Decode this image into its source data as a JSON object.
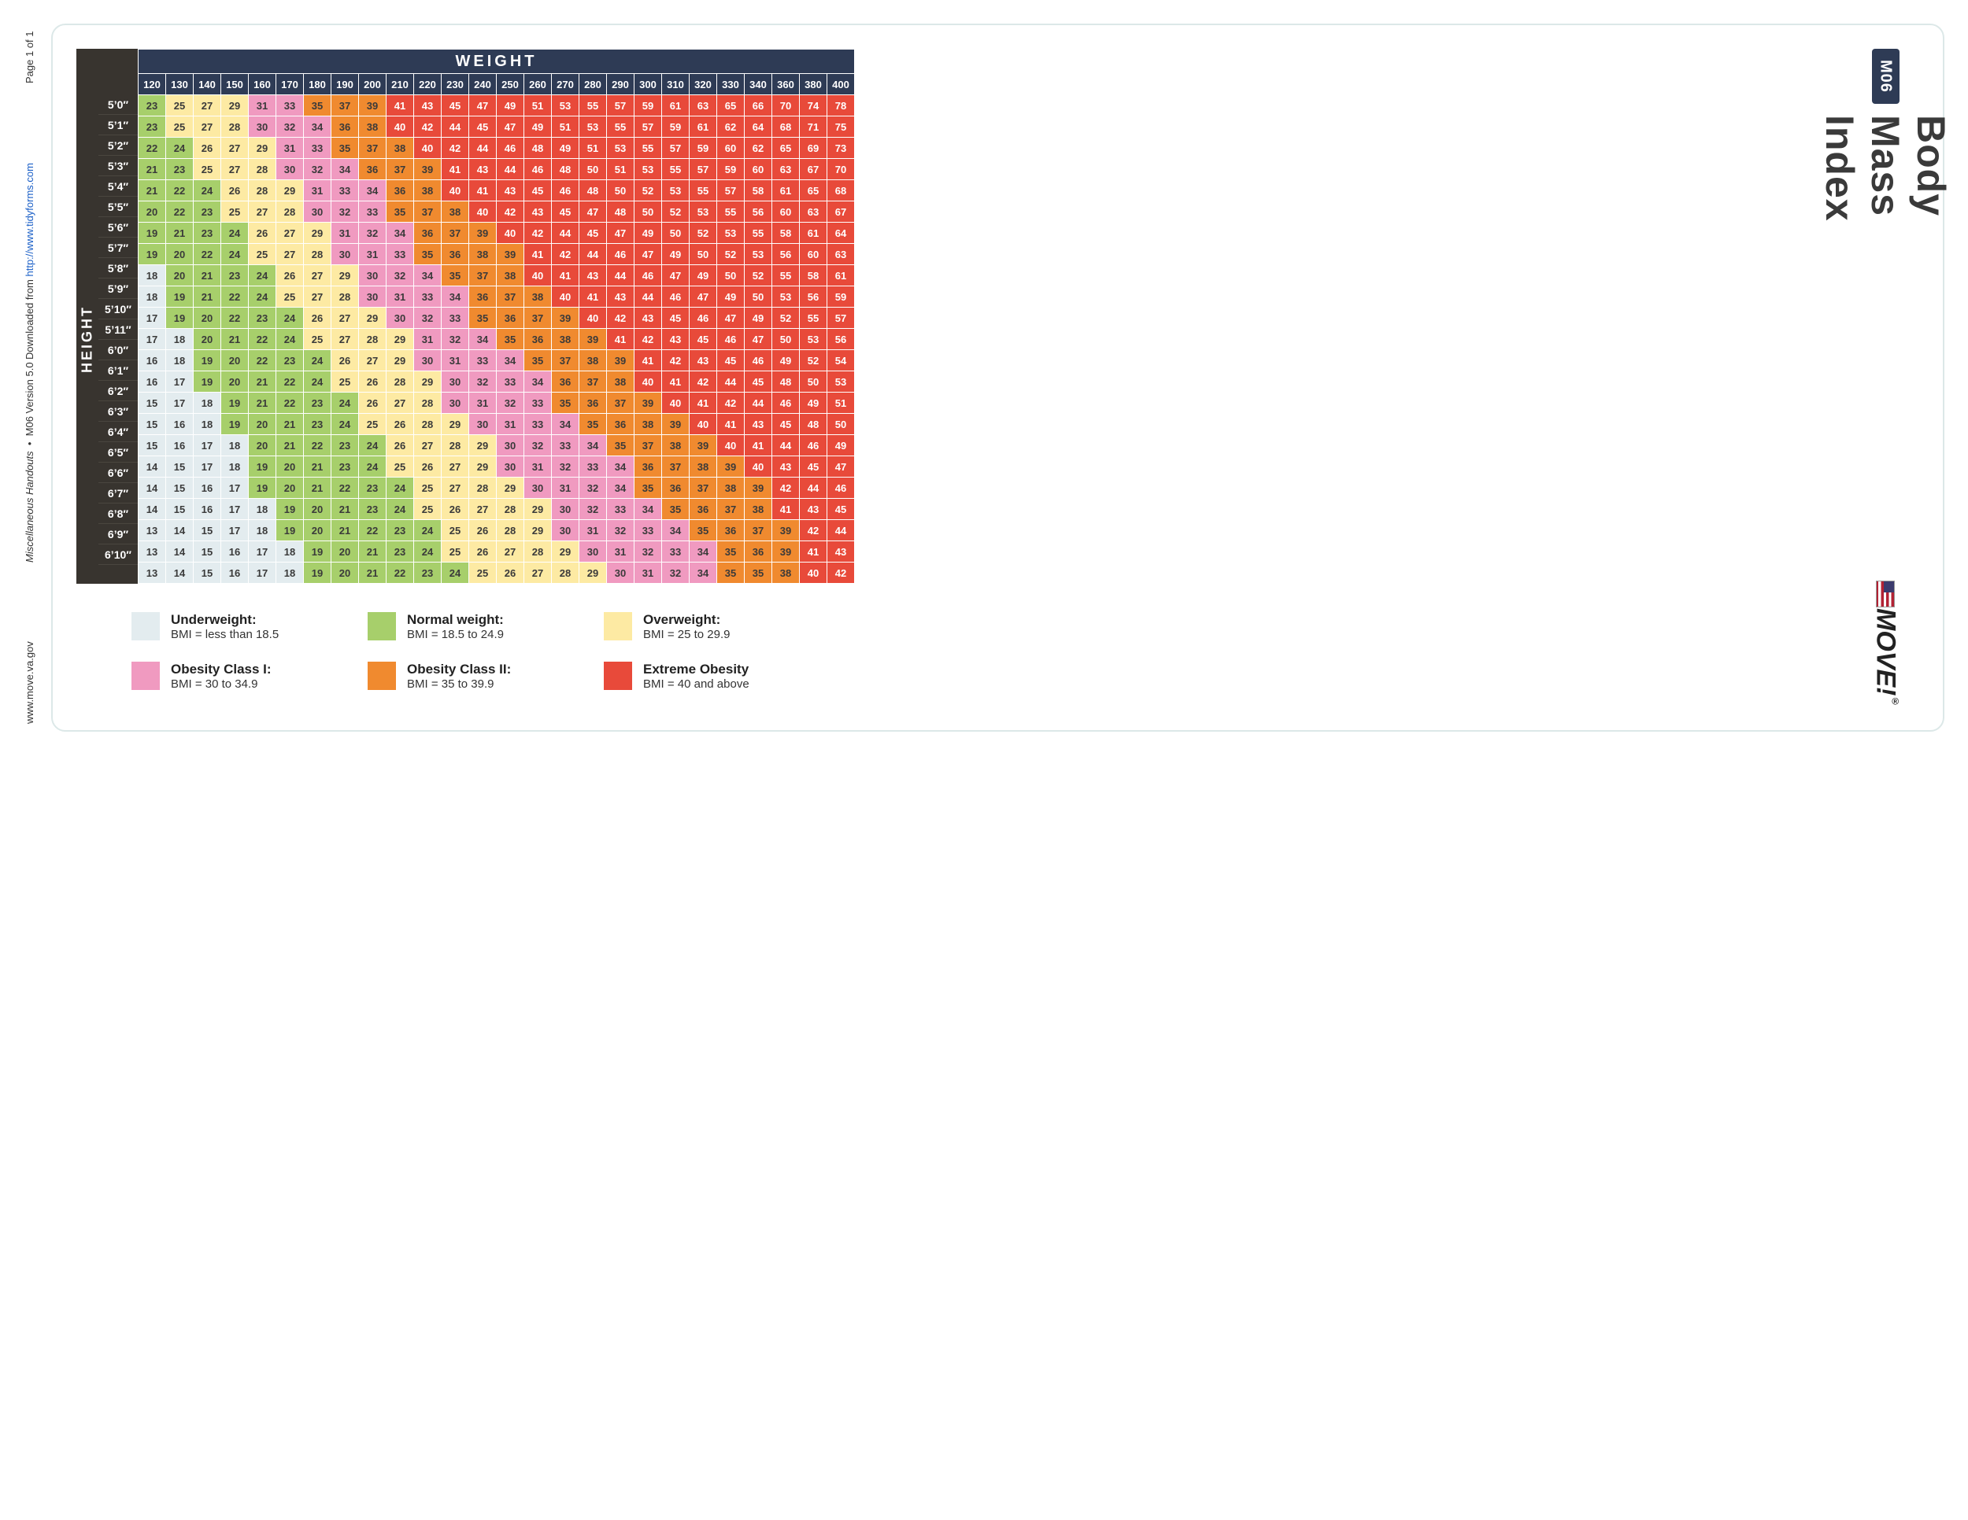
{
  "meta": {
    "url": "www.move.va.gov",
    "handout": "Miscellaneous Handouts",
    "version": "M06 Version 5.0",
    "downloaded_prefix": "Downloaded from ",
    "downloaded_url": "http://www.tidyforms.com",
    "page": "Page 1 of 1"
  },
  "doc": {
    "code": "M06",
    "title": "Body Mass Index",
    "brand": "MOVE!",
    "brand_reg": "®"
  },
  "axes": {
    "weight_label": "WEIGHT",
    "height_label": "HEIGHT"
  },
  "colors": {
    "underweight": "#e3ecef",
    "normal": "#a7cf6b",
    "overweight": "#fdeaa3",
    "obese1": "#f09ac0",
    "obese2": "#f08a2f",
    "obese3": "#e84a3a"
  },
  "thresholds": {
    "normal": 18.5,
    "overweight": 25,
    "obese1": 30,
    "obese2": 35,
    "obese3": 40
  },
  "weights": [
    120,
    130,
    140,
    150,
    160,
    170,
    180,
    190,
    200,
    210,
    220,
    230,
    240,
    250,
    260,
    270,
    280,
    290,
    300,
    310,
    320,
    330,
    340,
    360,
    380,
    400
  ],
  "heights": [
    "5'0\"",
    "5'1\"",
    "5'2\"",
    "5'3\"",
    "5'4\"",
    "5'5\"",
    "5'6\"",
    "5'7\"",
    "5'8\"",
    "5'9\"",
    "5'10\"",
    "5'11\"",
    "6'0\"",
    "6'1\"",
    "6'2\"",
    "6'3\"",
    "6'4\"",
    "6'5\"",
    "6'6\"",
    "6'7\"",
    "6'8\"",
    "6'9\"",
    "6'10\""
  ],
  "bmi": [
    [
      23,
      25,
      27,
      29,
      31,
      33,
      35,
      37,
      39,
      41,
      43,
      45,
      47,
      49,
      51,
      53,
      55,
      57,
      59,
      61,
      63,
      65,
      66,
      70,
      74,
      78
    ],
    [
      23,
      25,
      27,
      28,
      30,
      32,
      34,
      36,
      38,
      40,
      42,
      44,
      45,
      47,
      49,
      51,
      53,
      55,
      57,
      59,
      61,
      62,
      64,
      68,
      71,
      75
    ],
    [
      22,
      24,
      26,
      27,
      29,
      31,
      33,
      35,
      37,
      38,
      40,
      42,
      44,
      46,
      48,
      49,
      51,
      53,
      55,
      57,
      59,
      60,
      62,
      65,
      69,
      73
    ],
    [
      21,
      23,
      25,
      27,
      28,
      30,
      32,
      34,
      36,
      37,
      39,
      41,
      43,
      44,
      46,
      48,
      50,
      51,
      53,
      55,
      57,
      59,
      60,
      63,
      67,
      70
    ],
    [
      21,
      22,
      24,
      26,
      28,
      29,
      31,
      33,
      34,
      36,
      38,
      40,
      41,
      43,
      45,
      46,
      48,
      50,
      52,
      53,
      55,
      57,
      58,
      61,
      65,
      68
    ],
    [
      20,
      22,
      23,
      25,
      27,
      28,
      30,
      32,
      33,
      35,
      37,
      38,
      40,
      42,
      43,
      45,
      47,
      48,
      50,
      52,
      53,
      55,
      56,
      60,
      63,
      67
    ],
    [
      19,
      21,
      23,
      24,
      26,
      27,
      29,
      31,
      32,
      34,
      36,
      37,
      39,
      40,
      42,
      44,
      45,
      47,
      49,
      50,
      52,
      53,
      55,
      58,
      61,
      64
    ],
    [
      19,
      20,
      22,
      24,
      25,
      27,
      28,
      30,
      31,
      33,
      35,
      36,
      38,
      39,
      41,
      42,
      44,
      46,
      47,
      49,
      50,
      52,
      53,
      56,
      60,
      63
    ],
    [
      18,
      20,
      21,
      23,
      24,
      26,
      27,
      29,
      30,
      32,
      34,
      35,
      37,
      38,
      40,
      41,
      43,
      44,
      46,
      47,
      49,
      50,
      52,
      55,
      58,
      61
    ],
    [
      18,
      19,
      21,
      22,
      24,
      25,
      27,
      28,
      30,
      31,
      33,
      34,
      36,
      37,
      38,
      40,
      41,
      43,
      44,
      46,
      47,
      49,
      50,
      53,
      56,
      59
    ],
    [
      17,
      19,
      20,
      22,
      23,
      24,
      26,
      27,
      29,
      30,
      32,
      33,
      35,
      36,
      37,
      39,
      40,
      42,
      43,
      45,
      46,
      47,
      49,
      52,
      55,
      57
    ],
    [
      17,
      18,
      20,
      21,
      22,
      24,
      25,
      27,
      28,
      29,
      31,
      32,
      34,
      35,
      36,
      38,
      39,
      41,
      42,
      43,
      45,
      46,
      47,
      50,
      53,
      56
    ],
    [
      16,
      18,
      19,
      20,
      22,
      23,
      24,
      26,
      27,
      29,
      30,
      31,
      33,
      34,
      35,
      37,
      38,
      39,
      41,
      42,
      43,
      45,
      46,
      49,
      52,
      54
    ],
    [
      16,
      17,
      19,
      20,
      21,
      22,
      24,
      25,
      26,
      28,
      29,
      30,
      32,
      33,
      34,
      36,
      37,
      38,
      40,
      41,
      42,
      44,
      45,
      48,
      50,
      53
    ],
    [
      15,
      17,
      18,
      19,
      21,
      22,
      23,
      24,
      26,
      27,
      28,
      30,
      31,
      32,
      33,
      35,
      36,
      37,
      39,
      40,
      41,
      42,
      44,
      46,
      49,
      51
    ],
    [
      15,
      16,
      18,
      19,
      20,
      21,
      23,
      24,
      25,
      26,
      28,
      29,
      30,
      31,
      33,
      34,
      35,
      36,
      38,
      39,
      40,
      41,
      43,
      45,
      48,
      50
    ],
    [
      15,
      16,
      17,
      18,
      20,
      21,
      22,
      23,
      24,
      26,
      27,
      28,
      29,
      30,
      32,
      33,
      34,
      35,
      37,
      38,
      39,
      40,
      41,
      44,
      46,
      49
    ],
    [
      14,
      15,
      17,
      18,
      19,
      20,
      21,
      23,
      24,
      25,
      26,
      27,
      29,
      30,
      31,
      32,
      33,
      34,
      36,
      37,
      38,
      39,
      40,
      43,
      45,
      47
    ],
    [
      14,
      15,
      16,
      17,
      19,
      20,
      21,
      22,
      23,
      24,
      25,
      27,
      28,
      29,
      30,
      31,
      32,
      34,
      35,
      36,
      37,
      38,
      39,
      42,
      44,
      46
    ],
    [
      14,
      15,
      16,
      17,
      18,
      19,
      20,
      21,
      23,
      24,
      25,
      26,
      27,
      28,
      29,
      30,
      32,
      33,
      34,
      35,
      36,
      37,
      38,
      41,
      43,
      45
    ],
    [
      13,
      14,
      15,
      17,
      18,
      19,
      20,
      21,
      22,
      23,
      24,
      25,
      26,
      28,
      29,
      30,
      31,
      32,
      33,
      34,
      35,
      36,
      37,
      39,
      42,
      44
    ],
    [
      13,
      14,
      15,
      16,
      17,
      18,
      19,
      20,
      21,
      23,
      24,
      25,
      26,
      27,
      28,
      29,
      30,
      31,
      32,
      33,
      34,
      35,
      36,
      39,
      41,
      43
    ],
    [
      13,
      14,
      15,
      16,
      17,
      18,
      19,
      20,
      21,
      22,
      23,
      24,
      25,
      26,
      27,
      28,
      29,
      30,
      31,
      32,
      34,
      35,
      35,
      38,
      40,
      42
    ]
  ],
  "legend": [
    {
      "key": "underweight",
      "label": "Underweight:",
      "range": "BMI = less than 18.5"
    },
    {
      "key": "normal",
      "label": "Normal weight:",
      "range": "BMI = 18.5 to 24.9"
    },
    {
      "key": "overweight",
      "label": "Overweight:",
      "range": "BMI = 25 to 29.9"
    },
    {
      "key": "obese1",
      "label": "Obesity Class I:",
      "range": "BMI = 30 to 34.9"
    },
    {
      "key": "obese2",
      "label": "Obesity Class II:",
      "range": "BMI = 35 to 39.9"
    },
    {
      "key": "obese3",
      "label": "Extreme Obesity",
      "range": "BMI = 40 and above"
    }
  ]
}
